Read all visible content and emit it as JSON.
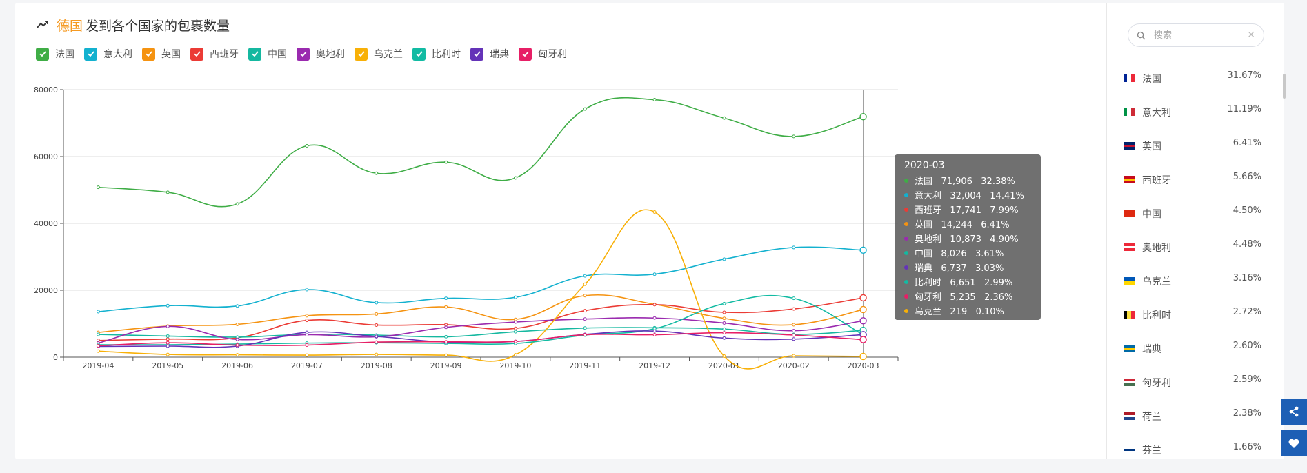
{
  "title": {
    "accent": "德国",
    "rest": "发到各个国家的包裹数量"
  },
  "search": {
    "placeholder": "搜索",
    "value": ""
  },
  "legend": [
    {
      "label": "法国",
      "color": "#3fad46"
    },
    {
      "label": "意大利",
      "color": "#13b1cf"
    },
    {
      "label": "英国",
      "color": "#f59311"
    },
    {
      "label": "西班牙",
      "color": "#eb3b35"
    },
    {
      "label": "中国",
      "color": "#15b8a0"
    },
    {
      "label": "奥地利",
      "color": "#9a2aaf"
    },
    {
      "label": "乌克兰",
      "color": "#f8b007"
    },
    {
      "label": "比利时",
      "color": "#12bba3"
    },
    {
      "label": "瑞典",
      "color": "#6433b8"
    },
    {
      "label": "匈牙利",
      "color": "#e71f66"
    }
  ],
  "chart_data": {
    "type": "line",
    "title": "德国 发到各个国家的包裹数量",
    "x": [
      "2019-04",
      "2019-05",
      "2019-06",
      "2019-07",
      "2019-08",
      "2019-09",
      "2019-10",
      "2019-11",
      "2019-12",
      "2020-01",
      "2020-02",
      "2020-03"
    ],
    "ylim": [
      0,
      80000
    ],
    "yticks": [
      0,
      20000,
      40000,
      60000,
      80000
    ],
    "grid": true,
    "series": [
      {
        "name": "法国",
        "color": "#3fad46",
        "values": [
          50800,
          49300,
          45800,
          63200,
          55000,
          58300,
          53600,
          74200,
          77000,
          71500,
          66000,
          71906
        ]
      },
      {
        "name": "意大利",
        "color": "#13b1cf",
        "values": [
          13600,
          15400,
          15300,
          20200,
          16300,
          17600,
          17900,
          24300,
          24800,
          29300,
          32800,
          32004
        ]
      },
      {
        "name": "英国",
        "color": "#f59311",
        "values": [
          7400,
          9300,
          9800,
          12400,
          12900,
          15000,
          11300,
          18400,
          15800,
          11600,
          9700,
          14244
        ]
      },
      {
        "name": "西班牙",
        "color": "#eb3b35",
        "values": [
          5000,
          5400,
          5800,
          11000,
          9600,
          9700,
          8600,
          13900,
          15700,
          13400,
          14400,
          17741
        ]
      },
      {
        "name": "中国",
        "color": "#15b8a0",
        "values": [
          6800,
          6300,
          6000,
          6800,
          6600,
          6100,
          7600,
          8700,
          8800,
          8400,
          6800,
          8026
        ]
      },
      {
        "name": "奥地利",
        "color": "#9a2aaf",
        "values": [
          4200,
          9200,
          5300,
          6700,
          6100,
          8900,
          10500,
          11400,
          11700,
          10200,
          7900,
          10873
        ]
      },
      {
        "name": "乌克兰",
        "color": "#f8b007",
        "values": [
          1800,
          800,
          700,
          600,
          800,
          600,
          700,
          21800,
          43400,
          300,
          400,
          219
        ]
      },
      {
        "name": "比利时",
        "color": "#12bba3",
        "values": [
          3700,
          3700,
          3900,
          4200,
          4300,
          4100,
          4100,
          6600,
          8500,
          16000,
          17600,
          6651
        ]
      },
      {
        "name": "瑞典",
        "color": "#6433b8",
        "values": [
          3200,
          3300,
          3300,
          7400,
          6200,
          4500,
          4700,
          6800,
          7800,
          5700,
          5400,
          6737
        ]
      },
      {
        "name": "匈牙利",
        "color": "#e71f66",
        "values": [
          3400,
          4300,
          3600,
          3600,
          4500,
          4600,
          4700,
          6700,
          6700,
          7300,
          6600,
          5235
        ]
      }
    ]
  },
  "tooltip": {
    "title": "2020-03",
    "rows": [
      {
        "text": "法国   71,906   32.38%",
        "color": "#3fad46"
      },
      {
        "text": "意大利   32,004   14.41%",
        "color": "#13b1cf"
      },
      {
        "text": "西班牙   17,741   7.99%",
        "color": "#eb3b35"
      },
      {
        "text": "英国   14,244   6.41%",
        "color": "#f59311"
      },
      {
        "text": "奥地利   10,873   4.90%",
        "color": "#9a2aaf"
      },
      {
        "text": "中国   8,026   3.61%",
        "color": "#15b8a0"
      },
      {
        "text": "瑞典   6,737   3.03%",
        "color": "#6433b8"
      },
      {
        "text": "比利时   6,651   2.99%",
        "color": "#12bba3"
      },
      {
        "text": "匈牙利   5,235   2.36%",
        "color": "#e71f66"
      },
      {
        "text": "乌克兰   219   0.10%",
        "color": "#f8b007"
      }
    ]
  },
  "rank": [
    {
      "name": "法国",
      "pct": "31.67%",
      "flag": [
        "#002395",
        "#ffffff",
        "#ed2939"
      ],
      "dir": "h"
    },
    {
      "name": "意大利",
      "pct": "11.19%",
      "flag": [
        "#009246",
        "#ffffff",
        "#ce2b37"
      ],
      "dir": "h"
    },
    {
      "name": "英国",
      "pct": "6.41%",
      "flag": [
        "#012169",
        "#c8102e",
        "#012169"
      ],
      "dir": "v"
    },
    {
      "name": "西班牙",
      "pct": "5.66%",
      "flag": [
        "#c60b1e",
        "#ffc400",
        "#c60b1e"
      ],
      "dir": "v"
    },
    {
      "name": "中国",
      "pct": "4.50%",
      "flag": [
        "#de2910",
        "#de2910",
        "#de2910"
      ],
      "dir": "v"
    },
    {
      "name": "奥地利",
      "pct": "4.48%",
      "flag": [
        "#ed2939",
        "#ffffff",
        "#ed2939"
      ],
      "dir": "v"
    },
    {
      "name": "乌克兰",
      "pct": "3.16%",
      "flag": [
        "#0057b7",
        "#ffd700"
      ],
      "dir": "v"
    },
    {
      "name": "比利时",
      "pct": "2.72%",
      "flag": [
        "#000000",
        "#fae042",
        "#ed2939"
      ],
      "dir": "h"
    },
    {
      "name": "瑞典",
      "pct": "2.60%",
      "flag": [
        "#006aa7",
        "#fecc00",
        "#006aa7"
      ],
      "dir": "v"
    },
    {
      "name": "匈牙利",
      "pct": "2.59%",
      "flag": [
        "#ce2939",
        "#ffffff",
        "#477050"
      ],
      "dir": "v"
    },
    {
      "name": "荷兰",
      "pct": "2.38%",
      "flag": [
        "#ae1c28",
        "#ffffff",
        "#21468b"
      ],
      "dir": "v"
    },
    {
      "name": "芬兰",
      "pct": "1.66%",
      "flag": [
        "#ffffff",
        "#003580",
        "#ffffff"
      ],
      "dir": "v"
    }
  ]
}
